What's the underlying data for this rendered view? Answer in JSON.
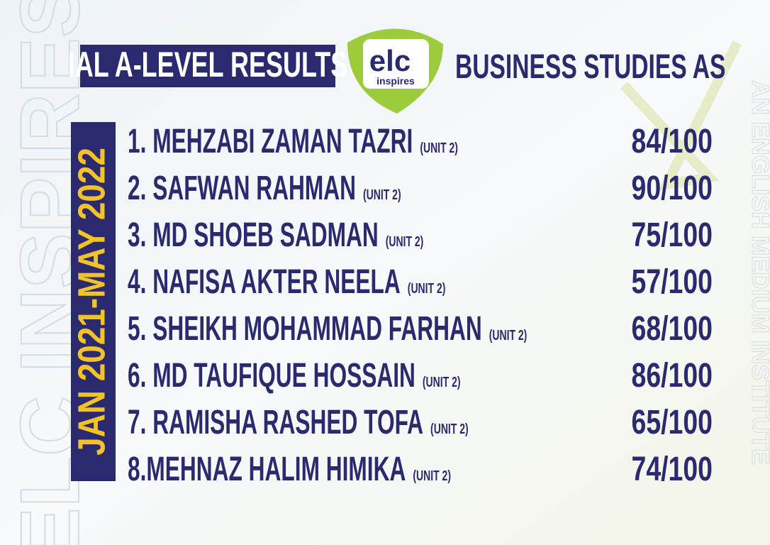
{
  "header": {
    "title": "IAL A-LEVEL RESULTS",
    "logo": {
      "mark": "elc",
      "tagline": "inspires"
    },
    "subject": "BUSINESS STUDIES AS"
  },
  "period": "JAN 2021-MAY 2022",
  "watermark_left": "ELC INSPIRES",
  "watermark_right": "AN ENGLISH MEDIUM INSTITUTE",
  "results": [
    {
      "name": "1. MEHZABI ZAMAN TAZRI",
      "unit": "(UNIT 2)",
      "score": "84/100"
    },
    {
      "name": "2. SAFWAN RAHMAN",
      "unit": "(UNIT 2)",
      "score": "90/100"
    },
    {
      "name": "3. MD SHOEB SADMAN",
      "unit": "(UNIT 2)",
      "score": "75/100"
    },
    {
      "name": "4. NAFISA AKTER NEELA",
      "unit": "(UNIT 2)",
      "score": "57/100"
    },
    {
      "name": "5. SHEIKH MOHAMMAD FARHAN",
      "unit": "(UNIT 2)",
      "score": "68/100"
    },
    {
      "name": "6. MD TAUFIQUE HOSSAIN",
      "unit": "(UNIT 2)",
      "score": "86/100"
    },
    {
      "name": "7. RAMISHA RASHED TOFA",
      "unit": "(UNIT 2)",
      "score": "65/100"
    },
    {
      "name": "8.MEHNAZ HALIM HIMIKA",
      "unit": "(UNIT 2)",
      "score": "74/100"
    }
  ]
}
